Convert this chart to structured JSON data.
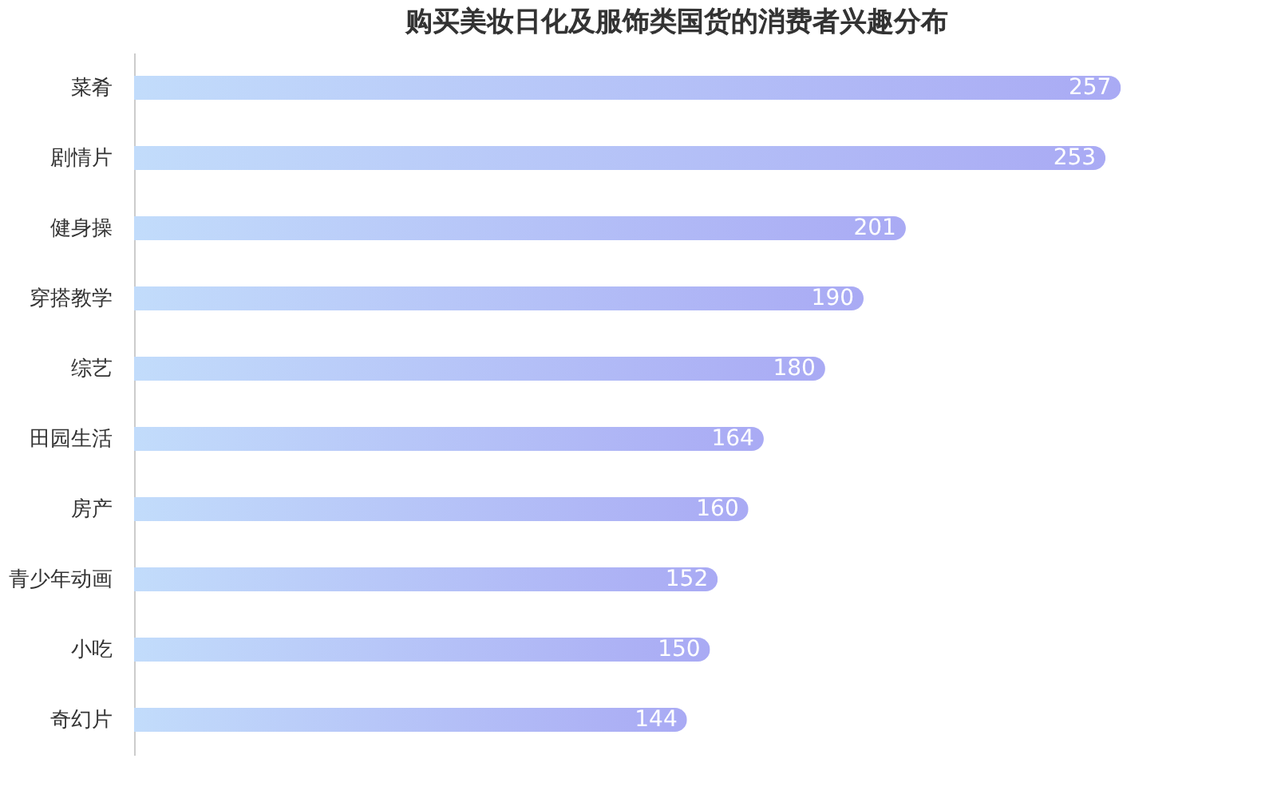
{
  "chart_data": {
    "type": "bar",
    "orientation": "horizontal",
    "title": "购买美妆日化及服饰类国货的消费者兴趣分布",
    "categories": [
      "菜肴",
      "剧情片",
      "健身操",
      "穿搭教学",
      "综艺",
      "田园生活",
      "房产",
      "青少年动画",
      "小吃",
      "奇幻片"
    ],
    "values": [
      257,
      253,
      201,
      190,
      180,
      164,
      160,
      152,
      150,
      144
    ],
    "color": "#a9aaf4",
    "data_labels": true
  }
}
